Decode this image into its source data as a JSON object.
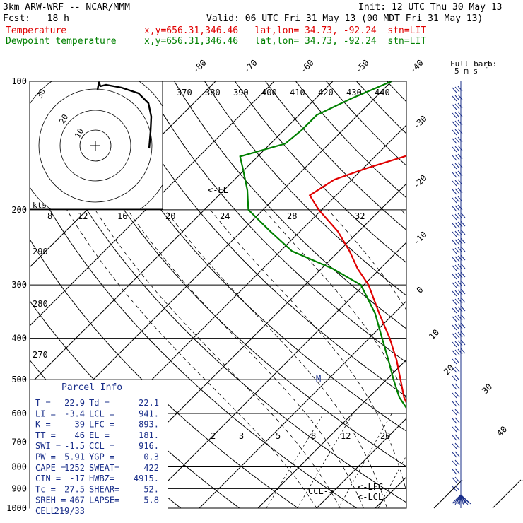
{
  "header": {
    "model": "3km ARW-WRF -- NCAR/MMM",
    "init": "Init: 12 UTC Thu 30 May 13",
    "fcst": "Fcst:   18 h",
    "valid": "Valid: 06 UTC Fri 31 May 13 (00 MDT Fri 31 May 13)",
    "temp_label": "Temperature",
    "temp_info": "x,y=656.31,346.46   lat,lon= 34.73, -92.24  stn=LIT",
    "dew_label": "Dewpoint temperature",
    "dew_info": "x,y=656.31,346.46   lat,lon= 34.73, -92.24  stn=LIT",
    "barb_title_1": "Full barb:",
    "barb_title_2": "5 m s",
    "barb_title_exp": "-1"
  },
  "colors": {
    "temperature": "#e00000",
    "dewpoint": "#008000",
    "text_blue": "#1a2f8a"
  },
  "chart_data": {
    "type": "line",
    "pressure_ticks": [
      100,
      200,
      300,
      400,
      500,
      600,
      700,
      800,
      900,
      1000
    ],
    "isotherm_labels": [
      "-80",
      "-70",
      "-60",
      "-50",
      "-40",
      "-30",
      "-20",
      "-10",
      "0",
      "10",
      "20",
      "30",
      "40"
    ],
    "theta_labels_top": [
      "370",
      "380",
      "390",
      "400",
      "410",
      "420",
      "430",
      "440"
    ],
    "theta_labels_left": [
      "290",
      "280",
      "270"
    ],
    "mixing_ratio_labels": [
      "2",
      "3",
      "5",
      "8",
      "12",
      "20"
    ],
    "series": [
      {
        "name": "Temperature",
        "pressure": [
          1000,
          975,
          950,
          925,
          900,
          875,
          850,
          800,
          750,
          700,
          650,
          600,
          550,
          500,
          450,
          400,
          350,
          300,
          275,
          250,
          225,
          200,
          185,
          170,
          160,
          150,
          140,
          130,
          120,
          110,
          100
        ],
        "values": [
          22.9,
          23.0,
          22.4,
          21.2,
          19.4,
          18.0,
          16.3,
          13.2,
          10.2,
          7.2,
          3.8,
          0.0,
          -4.0,
          -7.6,
          -11.6,
          -16.5,
          -22.5,
          -29.2,
          -33.8,
          -38.2,
          -43.5,
          -50.5,
          -54.5,
          -53.0,
          -49.5,
          -45.0,
          -41.0,
          -38.0,
          -35.0,
          -32.0,
          -29.5
        ]
      },
      {
        "name": "Dewpoint temperature",
        "pressure": [
          1000,
          975,
          950,
          925,
          900,
          875,
          850,
          800,
          750,
          700,
          650,
          600,
          550,
          500,
          450,
          400,
          350,
          300,
          275,
          250,
          225,
          200,
          180,
          160,
          150,
          140,
          130,
          120,
          110,
          100
        ],
        "values": [
          22.1,
          21.0,
          20.0,
          19.0,
          18.0,
          16.6,
          15.5,
          13.0,
          10.0,
          7.0,
          3.5,
          -0.2,
          -4.8,
          -8.8,
          -13.0,
          -17.8,
          -23.2,
          -30.5,
          -38.0,
          -48.0,
          -55.0,
          -62.5,
          -66.0,
          -70.5,
          -73.0,
          -67.5,
          -67.0,
          -67.0,
          -64.0,
          -60.0
        ]
      }
    ],
    "annotations": [
      "<-EL",
      "CCL->",
      "<-LFC",
      "<-LCL",
      "M"
    ]
  },
  "hodograph": {
    "kts_label": "kts",
    "speed_ticks": [
      "8",
      "12",
      "16",
      "20",
      "24",
      "28",
      "32"
    ],
    "ring_labels": [
      "30",
      "20",
      "10"
    ]
  },
  "parcel": {
    "title": "Parcel Info",
    "rows": [
      [
        "T    =",
        "22.9",
        "Td =",
        "22.1"
      ],
      [
        "LI   =",
        "-3.4",
        "LCL =",
        "941."
      ],
      [
        "K    =",
        "39",
        "LFC =",
        "893."
      ],
      [
        "TT   =",
        "46",
        "EL  =",
        "181."
      ],
      [
        "SWI  =",
        "-1.5",
        "CCL =",
        "916."
      ],
      [
        "PW   =",
        "5.91",
        "YGP =",
        "0.3"
      ],
      [
        "CAPE =",
        "1252",
        "SWEAT=",
        "422"
      ],
      [
        "CIN  =",
        "-17",
        "HWBZ=",
        "4915."
      ],
      [
        "Tc   =",
        "27.5",
        "SHEAR=",
        "52."
      ],
      [
        "SREH =",
        "467",
        "LAPSE=",
        "5.8"
      ],
      [
        "CELL =",
        "219/33",
        "",
        ""
      ]
    ]
  }
}
